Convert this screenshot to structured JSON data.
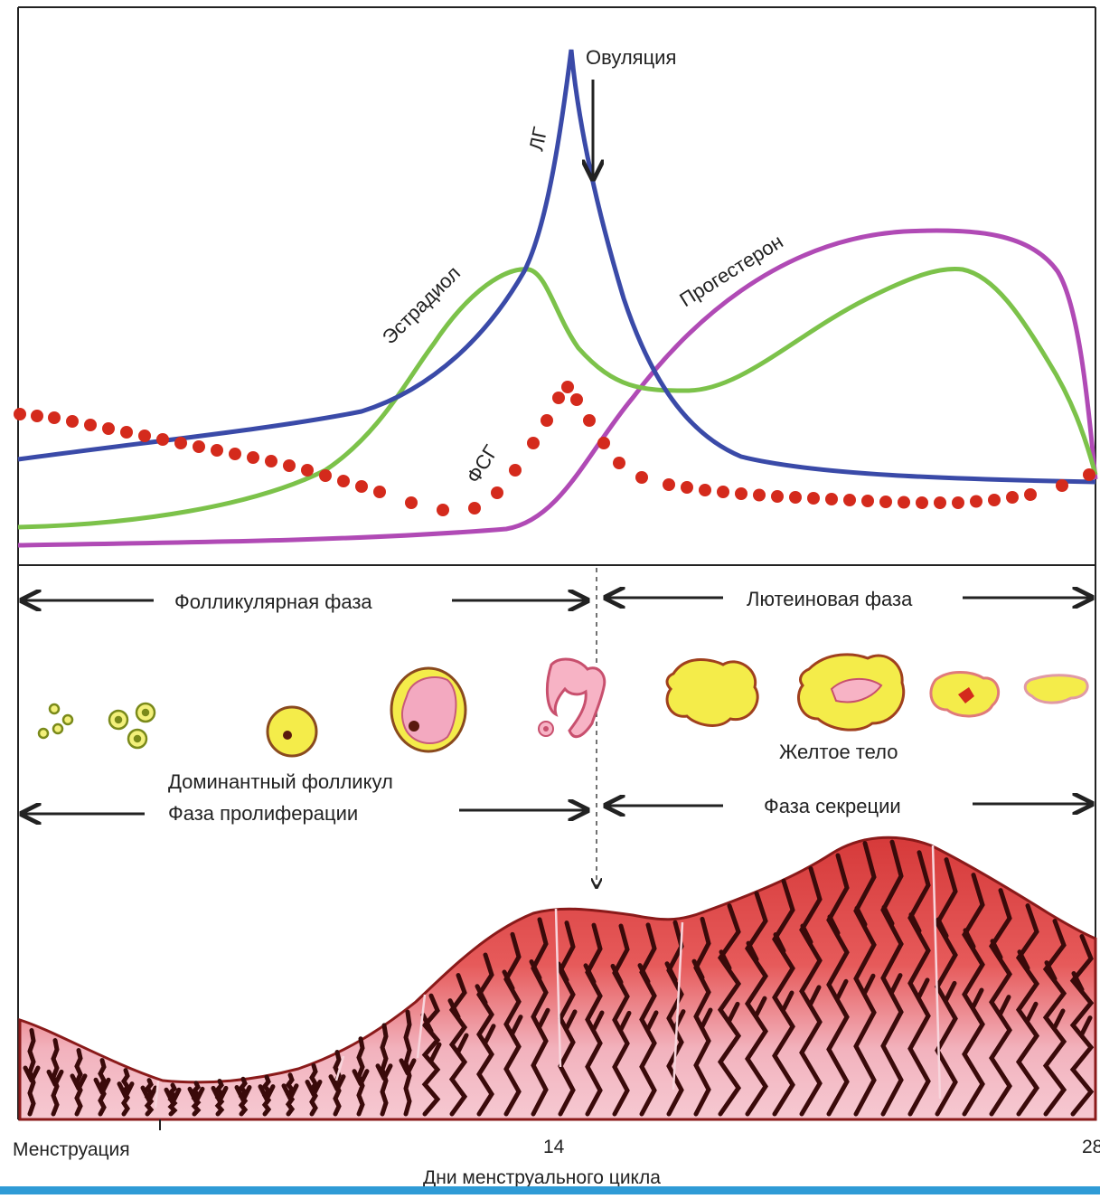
{
  "hormones": {
    "lh_label": "ЛГ",
    "estradiol_label": "Эстрадиол",
    "progesterone_label": "Прогестерон",
    "fsh_label": "ФСГ",
    "ovulation_label": "Овуляция",
    "colors": {
      "lh": "#3a4aa8",
      "estradiol": "#7cc24a",
      "progesterone": "#b04ab5",
      "fsh": "#d42a1c"
    }
  },
  "phases": {
    "follicular": "Фолликулярная фаза",
    "luteal": "Лютеиновая фаза",
    "proliferation": "Фаза пролиферации",
    "secretion": "Фаза секреции"
  },
  "ovary": {
    "dominant_follicle": "Доминантный фолликул",
    "corpus_luteum": "Желтое тело"
  },
  "axis": {
    "menstruation": "Менструация",
    "day_14": "14",
    "day_28": "28",
    "title": "Дни менструального цикла"
  }
}
